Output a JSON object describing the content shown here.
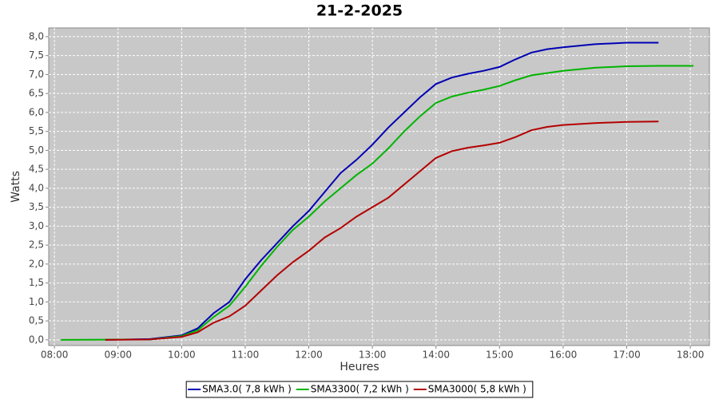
{
  "chart_data": {
    "type": "line",
    "title": "21-2-2025",
    "x_label": "Heures",
    "y_label": "Watts",
    "xlim": [
      7.91,
      18.3
    ],
    "ylim": [
      -0.15,
      8.23
    ],
    "grid": true,
    "legend": "bottom",
    "background": "#c8c8c8",
    "xticks": [
      {
        "value": 8,
        "label": "08:00"
      },
      {
        "value": 9,
        "label": "09:00"
      },
      {
        "value": 10,
        "label": "10:00"
      },
      {
        "value": 11,
        "label": "11:00"
      },
      {
        "value": 12,
        "label": "12:00"
      },
      {
        "value": 13,
        "label": "13:00"
      },
      {
        "value": 14,
        "label": "14:00"
      },
      {
        "value": 15,
        "label": "15:00"
      },
      {
        "value": 16,
        "label": "16:00"
      },
      {
        "value": 17,
        "label": "17:00"
      },
      {
        "value": 18,
        "label": "18:00"
      }
    ],
    "yticks": [
      {
        "value": 0,
        "label": "0,0"
      },
      {
        "value": 0.5,
        "label": "0,5"
      },
      {
        "value": 1,
        "label": "1,0"
      },
      {
        "value": 1.5,
        "label": "1,5"
      },
      {
        "value": 2,
        "label": "2,0"
      },
      {
        "value": 2.5,
        "label": "2,5"
      },
      {
        "value": 3,
        "label": "3,0"
      },
      {
        "value": 3.5,
        "label": "3,5"
      },
      {
        "value": 4,
        "label": "4,0"
      },
      {
        "value": 4.5,
        "label": "4,5"
      },
      {
        "value": 5,
        "label": "5,0"
      },
      {
        "value": 5.5,
        "label": "5,5"
      },
      {
        "value": 6,
        "label": "6,0"
      },
      {
        "value": 6.5,
        "label": "6,5"
      },
      {
        "value": 7,
        "label": "7,0"
      },
      {
        "value": 7.5,
        "label": "7,5"
      },
      {
        "value": 8,
        "label": "8,0"
      }
    ],
    "series": [
      {
        "name": "SMA3.0( 7,8 kWh )",
        "color": "#0000b4",
        "x": [
          8.8,
          9.5,
          10.0,
          10.25,
          10.5,
          10.75,
          11.0,
          11.25,
          11.5,
          11.75,
          12.0,
          12.25,
          12.5,
          12.75,
          13.0,
          13.25,
          13.5,
          13.75,
          14.0,
          14.25,
          14.5,
          14.75,
          15.0,
          15.25,
          15.5,
          15.75,
          16.0,
          16.5,
          17.0,
          17.5
        ],
        "values": [
          0,
          0.02,
          0.12,
          0.3,
          0.7,
          1.0,
          1.6,
          2.1,
          2.55,
          3.0,
          3.4,
          3.9,
          4.4,
          4.75,
          5.15,
          5.6,
          6.0,
          6.4,
          6.75,
          6.92,
          7.02,
          7.1,
          7.2,
          7.4,
          7.58,
          7.67,
          7.72,
          7.8,
          7.84,
          7.84
        ]
      },
      {
        "name": "SMA3300( 7,2 kWh )",
        "color": "#00b400",
        "x": [
          8.1,
          9.5,
          10.0,
          10.25,
          10.5,
          10.75,
          11.0,
          11.25,
          11.5,
          11.75,
          12.0,
          12.25,
          12.5,
          12.75,
          13.0,
          13.25,
          13.5,
          13.75,
          14.0,
          14.25,
          14.5,
          14.75,
          15.0,
          15.25,
          15.5,
          16.0,
          16.5,
          17.0,
          17.5,
          18.05
        ],
        "values": [
          0,
          0.01,
          0.1,
          0.25,
          0.6,
          0.9,
          1.4,
          1.95,
          2.45,
          2.9,
          3.25,
          3.65,
          4.0,
          4.35,
          4.65,
          5.05,
          5.5,
          5.9,
          6.25,
          6.42,
          6.52,
          6.6,
          6.7,
          6.85,
          6.98,
          7.1,
          7.18,
          7.22,
          7.23,
          7.23
        ]
      },
      {
        "name": "SMA3000( 5,8 kWh )",
        "color": "#b40000",
        "x": [
          8.8,
          9.5,
          10.0,
          10.25,
          10.5,
          10.75,
          11.0,
          11.25,
          11.5,
          11.75,
          12.0,
          12.25,
          12.5,
          12.75,
          13.0,
          13.25,
          13.5,
          13.75,
          14.0,
          14.25,
          14.5,
          14.75,
          15.0,
          15.25,
          15.5,
          15.75,
          16.0,
          16.5,
          17.0,
          17.5
        ],
        "values": [
          0,
          0.01,
          0.08,
          0.2,
          0.45,
          0.62,
          0.9,
          1.3,
          1.7,
          2.05,
          2.35,
          2.7,
          2.95,
          3.25,
          3.5,
          3.75,
          4.1,
          4.45,
          4.8,
          4.98,
          5.07,
          5.13,
          5.2,
          5.35,
          5.53,
          5.62,
          5.67,
          5.72,
          5.75,
          5.76
        ]
      }
    ]
  }
}
